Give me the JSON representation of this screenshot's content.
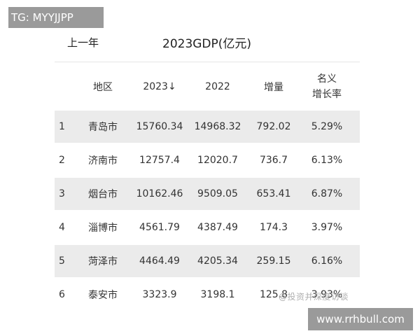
{
  "badges": {
    "top_left": "TG: MYYJJPP",
    "bottom_right": "www.rrhbull.com"
  },
  "header": {
    "left_label": "上一年",
    "title": "2023GDP(亿元)"
  },
  "table": {
    "columns": [
      "",
      "地区",
      "2023↓",
      "2022",
      "增量",
      "名义",
      "增长率"
    ],
    "rows": [
      {
        "rank": "1",
        "region": "青岛市",
        "y2023": "15760.34",
        "y2022": "14968.32",
        "increase": "792.02",
        "growth": "5.29%"
      },
      {
        "rank": "2",
        "region": "济南市",
        "y2023": "12757.4",
        "y2022": "12020.7",
        "increase": "736.7",
        "growth": "6.13%"
      },
      {
        "rank": "3",
        "region": "烟台市",
        "y2023": "10162.46",
        "y2022": "9509.05",
        "increase": "653.41",
        "growth": "6.87%"
      },
      {
        "rank": "4",
        "region": "淄博市",
        "y2023": "4561.79",
        "y2022": "4387.49",
        "increase": "174.3",
        "growth": "3.97%"
      },
      {
        "rank": "5",
        "region": "菏泽市",
        "y2023": "4464.49",
        "y2022": "4205.34",
        "increase": "259.15",
        "growth": "6.16%"
      },
      {
        "rank": "6",
        "region": "泰安市",
        "y2023": "3323.9",
        "y2022": "3198.1",
        "increase": "125.8",
        "growth": "3.93%"
      }
    ]
  },
  "watermark": "@投资并深度访谈",
  "colors": {
    "shade_row": "#ebebeb",
    "badge_bg": "#9a9a9a"
  }
}
